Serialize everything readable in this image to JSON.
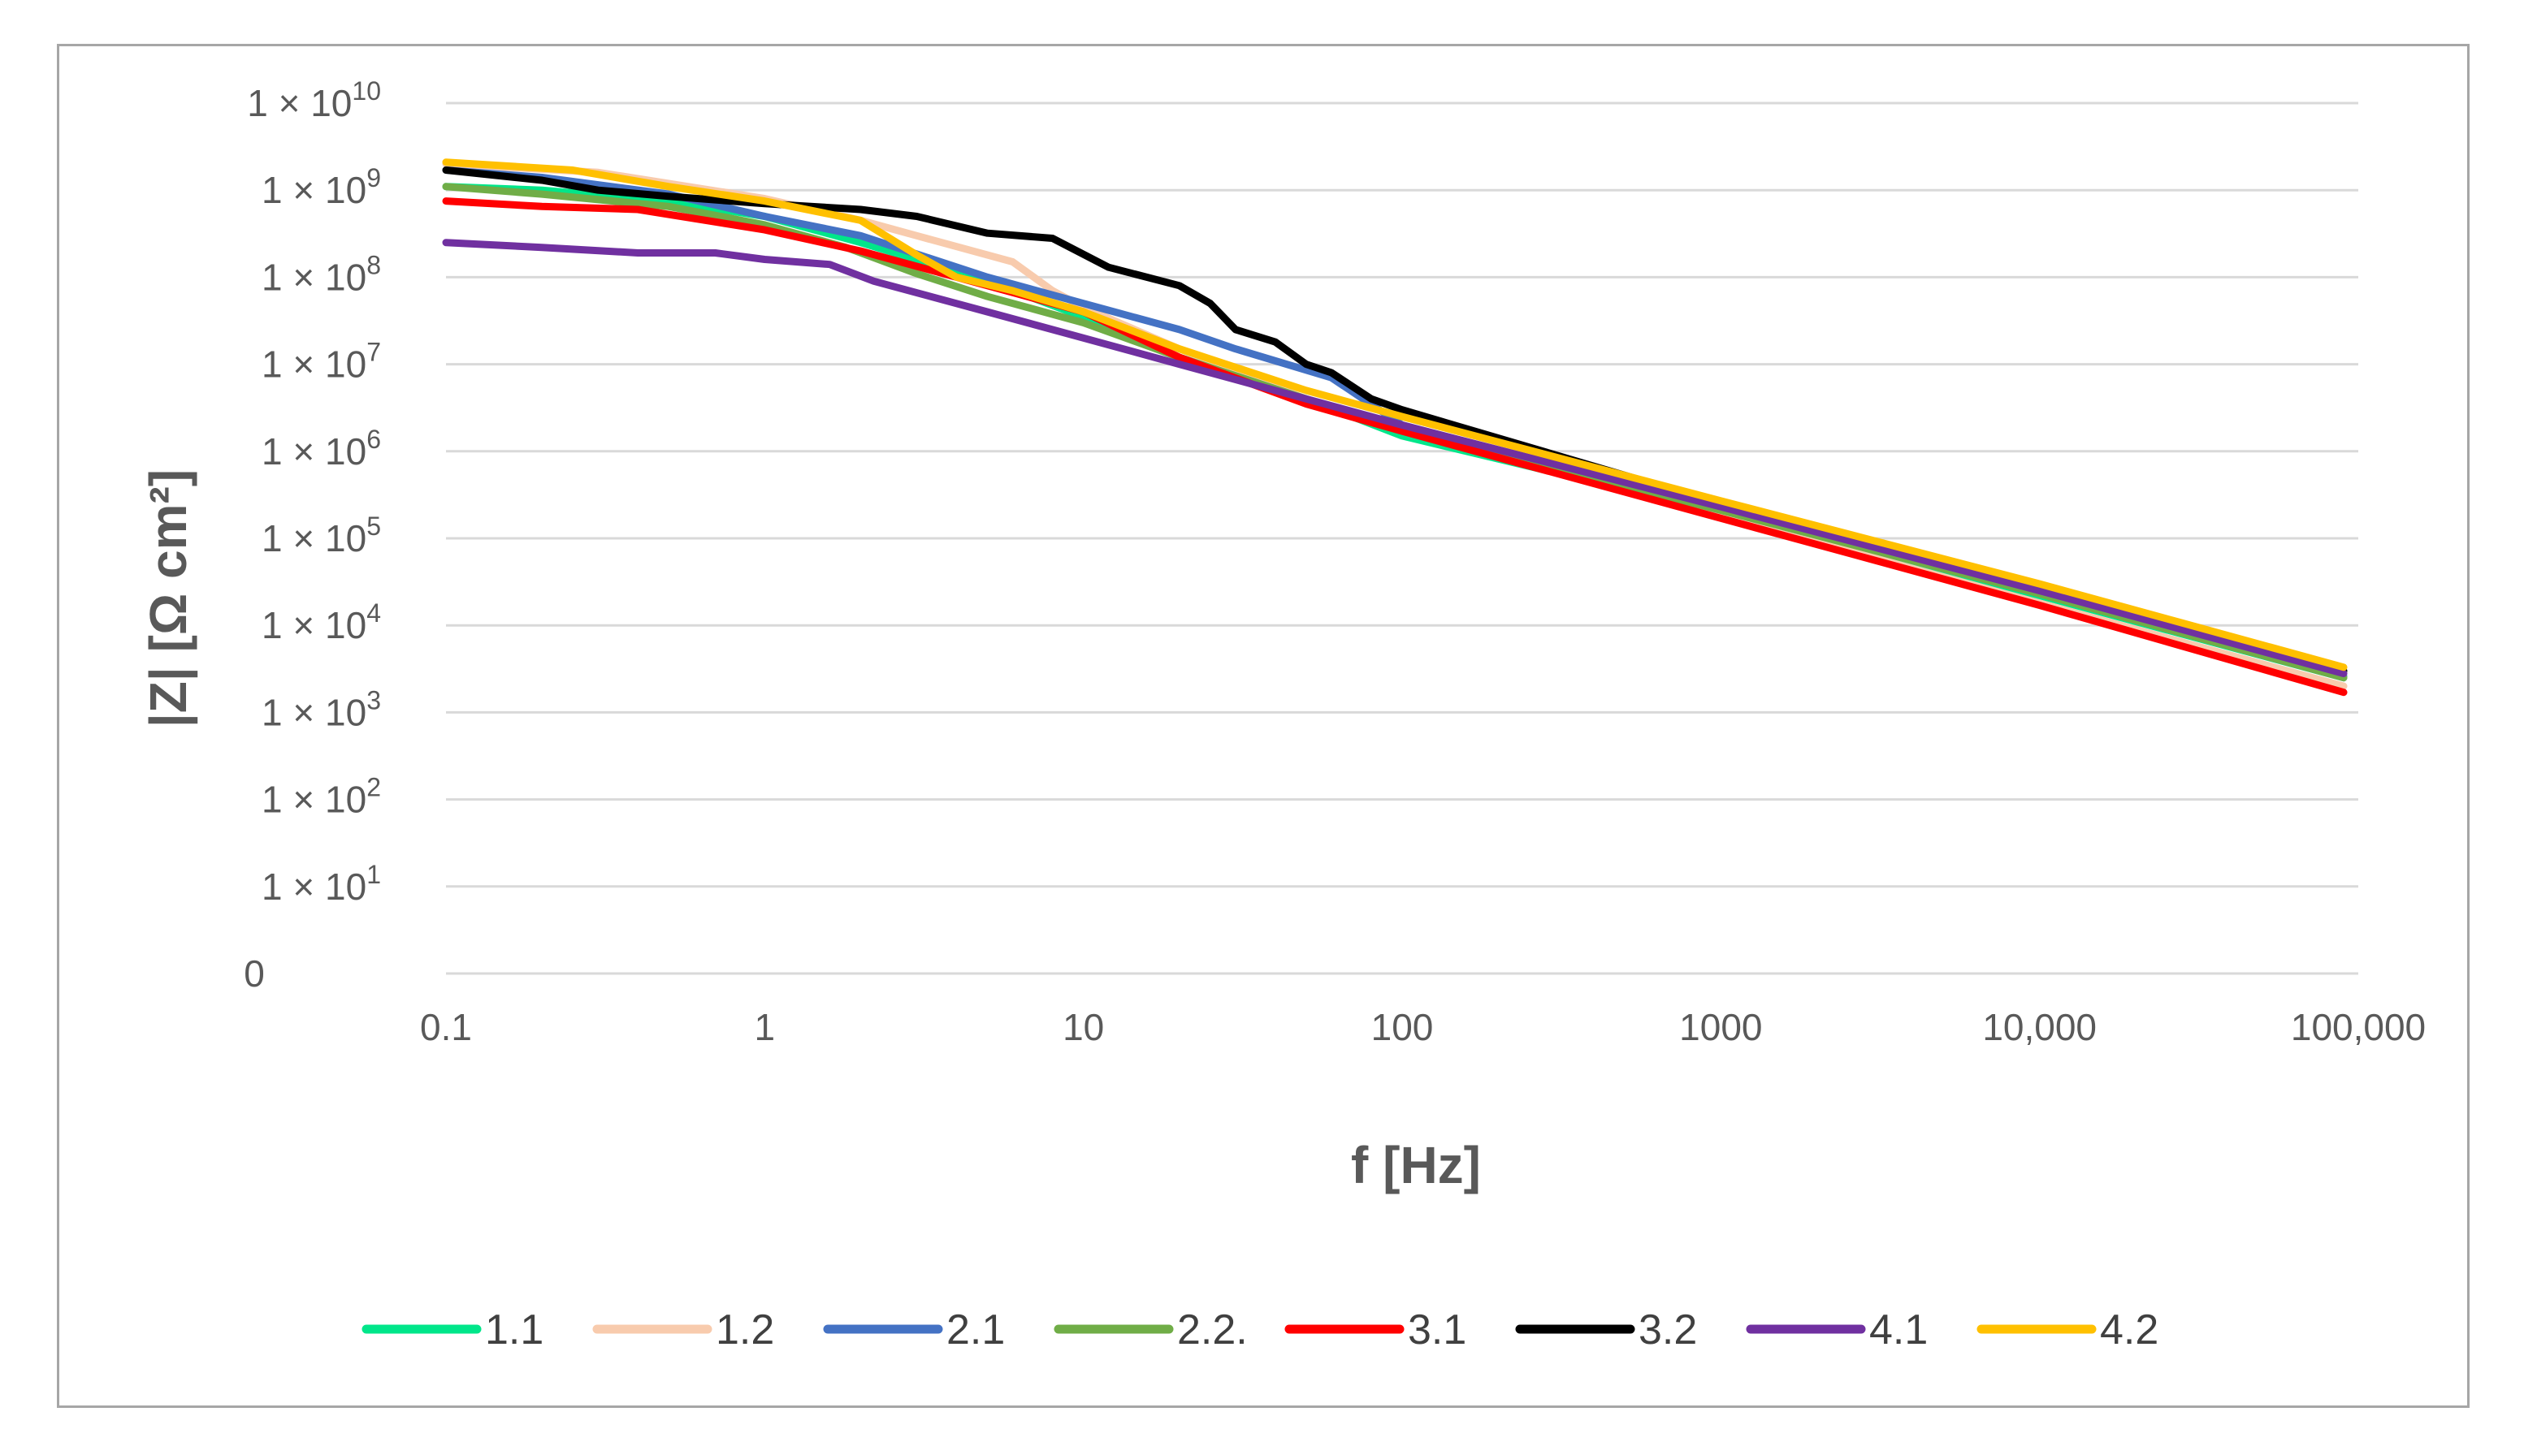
{
  "chart_data": {
    "type": "line",
    "title": "",
    "xlabel": "f [Hz]",
    "ylabel": "|Z| [Ω cm²]",
    "x_scale": "log",
    "y_scale": "log",
    "xlim": [
      0.1,
      100000
    ],
    "ylim": [
      1,
      10000000000
    ],
    "grid": "horizontal",
    "legend_position": "bottom",
    "x_ticks": [
      {
        "value": 0.1,
        "label": "0.1"
      },
      {
        "value": 1,
        "label": "1"
      },
      {
        "value": 10,
        "label": "10"
      },
      {
        "value": 100,
        "label": "100"
      },
      {
        "value": 1000,
        "label": "1000"
      },
      {
        "value": 10000,
        "label": "10,000"
      },
      {
        "value": 100000,
        "label": "100,000"
      }
    ],
    "y_ticks": [
      {
        "value": 1,
        "base": "0",
        "exp": ""
      },
      {
        "value": 10,
        "base": "1 × 10",
        "exp": "1"
      },
      {
        "value": 100,
        "base": "1 × 10",
        "exp": "2"
      },
      {
        "value": 1000,
        "base": "1 × 10",
        "exp": "3"
      },
      {
        "value": 10000,
        "base": "1 × 10",
        "exp": "4"
      },
      {
        "value": 100000,
        "base": "1 × 10",
        "exp": "5"
      },
      {
        "value": 1000000,
        "base": "1 × 10",
        "exp": "6"
      },
      {
        "value": 10000000,
        "base": "1 × 10",
        "exp": "7"
      },
      {
        "value": 100000000,
        "base": "1 × 10",
        "exp": "8"
      },
      {
        "value": 1000000000,
        "base": "1 × 10",
        "exp": "9"
      },
      {
        "value": 10000000000,
        "base": "1 × 10",
        "exp": "10"
      }
    ],
    "series": [
      {
        "name": "1.1",
        "color": "#00e68a",
        "points": [
          [
            0.1,
            1100000000
          ],
          [
            0.2,
            1000000000
          ],
          [
            0.5,
            750000000
          ],
          [
            1,
            500000000
          ],
          [
            2,
            250000000
          ],
          [
            5,
            90000000
          ],
          [
            10,
            35000000
          ],
          [
            20,
            12000000
          ],
          [
            50,
            4000000
          ],
          [
            100,
            1500000
          ],
          [
            1000,
            200000
          ],
          [
            10000,
            22000
          ],
          [
            90000,
            2500
          ]
        ]
      },
      {
        "name": "1.2",
        "color": "#f8cbad",
        "points": [
          [
            0.1,
            2000000000
          ],
          [
            0.3,
            1600000000
          ],
          [
            1,
            800000000
          ],
          [
            2,
            450000000
          ],
          [
            3,
            300000000
          ],
          [
            6,
            150000000
          ],
          [
            8,
            70000000
          ],
          [
            10,
            45000000
          ],
          [
            20,
            15000000
          ],
          [
            50,
            4000000
          ],
          [
            100,
            1800000
          ],
          [
            1000,
            180000
          ],
          [
            10000,
            18000
          ],
          [
            90000,
            2000
          ]
        ]
      },
      {
        "name": "2.1",
        "color": "#4472c4",
        "points": [
          [
            0.1,
            1700000000
          ],
          [
            0.2,
            1400000000
          ],
          [
            0.5,
            900000000
          ],
          [
            1,
            500000000
          ],
          [
            2,
            300000000
          ],
          [
            5,
            100000000
          ],
          [
            10,
            50000000
          ],
          [
            20,
            25000000
          ],
          [
            30,
            15000000
          ],
          [
            60,
            7000000
          ],
          [
            100,
            2000000
          ],
          [
            1000,
            220000
          ],
          [
            10000,
            24000
          ],
          [
            90000,
            2600
          ]
        ]
      },
      {
        "name": "2.2.",
        "color": "#70ad47",
        "points": [
          [
            0.1,
            1100000000
          ],
          [
            0.2,
            900000000
          ],
          [
            0.5,
            650000000
          ],
          [
            1,
            400000000
          ],
          [
            1.8,
            220000000
          ],
          [
            3,
            110000000
          ],
          [
            5,
            60000000
          ],
          [
            10,
            30000000
          ],
          [
            20,
            12000000
          ],
          [
            50,
            4000000
          ],
          [
            100,
            1800000
          ],
          [
            1000,
            210000
          ],
          [
            10000,
            23000
          ],
          [
            90000,
            2500
          ]
        ]
      },
      {
        "name": "3.1",
        "color": "#ff0000",
        "points": [
          [
            0.1,
            750000000
          ],
          [
            0.2,
            650000000
          ],
          [
            0.4,
            600000000
          ],
          [
            1,
            350000000
          ],
          [
            2,
            200000000
          ],
          [
            4,
            100000000
          ],
          [
            10,
            40000000
          ],
          [
            20,
            12000000
          ],
          [
            50,
            3500000
          ],
          [
            100,
            1700000
          ],
          [
            1000,
            170000
          ],
          [
            10000,
            17000
          ],
          [
            90000,
            1700
          ]
        ]
      },
      {
        "name": "3.2",
        "color": "#000000",
        "points": [
          [
            0.1,
            1700000000
          ],
          [
            0.2,
            1300000000
          ],
          [
            0.3,
            1000000000
          ],
          [
            0.5,
            850000000
          ],
          [
            1,
            700000000
          ],
          [
            2,
            600000000
          ],
          [
            3,
            500000000
          ],
          [
            5,
            320000000
          ],
          [
            8,
            280000000
          ],
          [
            12,
            130000000
          ],
          [
            20,
            80000000
          ],
          [
            25,
            50000000
          ],
          [
            30,
            25000000
          ],
          [
            40,
            18000000
          ],
          [
            50,
            10000000
          ],
          [
            60,
            8000000
          ],
          [
            80,
            4000000
          ],
          [
            100,
            3000000
          ],
          [
            1000,
            250000
          ],
          [
            10000,
            28000
          ],
          [
            90000,
            3000
          ]
        ]
      },
      {
        "name": "4.1",
        "color": "#7030a0",
        "points": [
          [
            0.1,
            250000000
          ],
          [
            0.2,
            220000000
          ],
          [
            0.4,
            190000000
          ],
          [
            0.7,
            190000000
          ],
          [
            1,
            160000000
          ],
          [
            1.6,
            140000000
          ],
          [
            2.2,
            90000000
          ],
          [
            5,
            40000000
          ],
          [
            10,
            20000000
          ],
          [
            20,
            10000000
          ],
          [
            50,
            4000000
          ],
          [
            100,
            2000000
          ],
          [
            1000,
            230000
          ],
          [
            10000,
            25000
          ],
          [
            90000,
            2800
          ]
        ]
      },
      {
        "name": "4.2",
        "color": "#ffc000",
        "points": [
          [
            0.1,
            2100000000
          ],
          [
            0.25,
            1700000000
          ],
          [
            0.5,
            1100000000
          ],
          [
            1,
            750000000
          ],
          [
            2,
            450000000
          ],
          [
            3,
            180000000
          ],
          [
            4,
            100000000
          ],
          [
            6,
            70000000
          ],
          [
            10,
            40000000
          ],
          [
            20,
            15000000
          ],
          [
            50,
            5000000
          ],
          [
            100,
            2500000
          ],
          [
            1000,
            270000
          ],
          [
            10000,
            30000
          ],
          [
            90000,
            3300
          ]
        ]
      }
    ]
  }
}
